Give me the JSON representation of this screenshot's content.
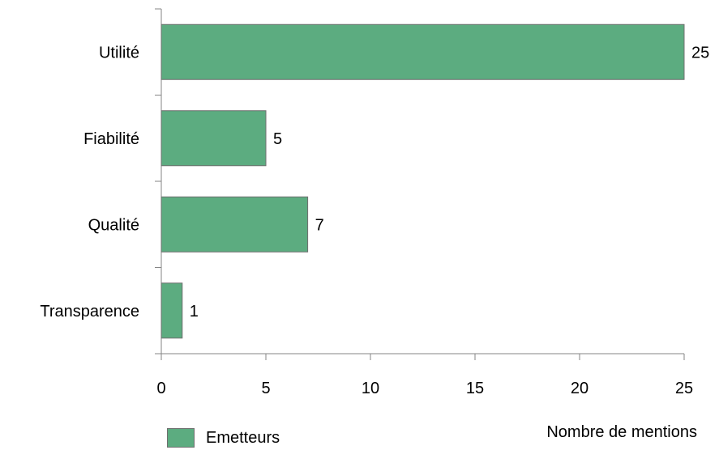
{
  "chart_data": {
    "type": "bar",
    "orientation": "horizontal",
    "categories": [
      "Utilité",
      "Fiabilité",
      "Qualité",
      "Transparence"
    ],
    "values": [
      25,
      5,
      7,
      1
    ],
    "series": [
      {
        "name": "Emetteurs",
        "values": [
          25,
          5,
          7,
          1
        ],
        "color": "#5cac80"
      }
    ],
    "xlabel": "Nombre de mentions",
    "xlim": [
      0,
      25
    ],
    "xticks": [
      "0",
      "5",
      "10",
      "15",
      "20",
      "25"
    ],
    "grid": false,
    "legend_position": "bottom-left",
    "data_labels": true
  }
}
